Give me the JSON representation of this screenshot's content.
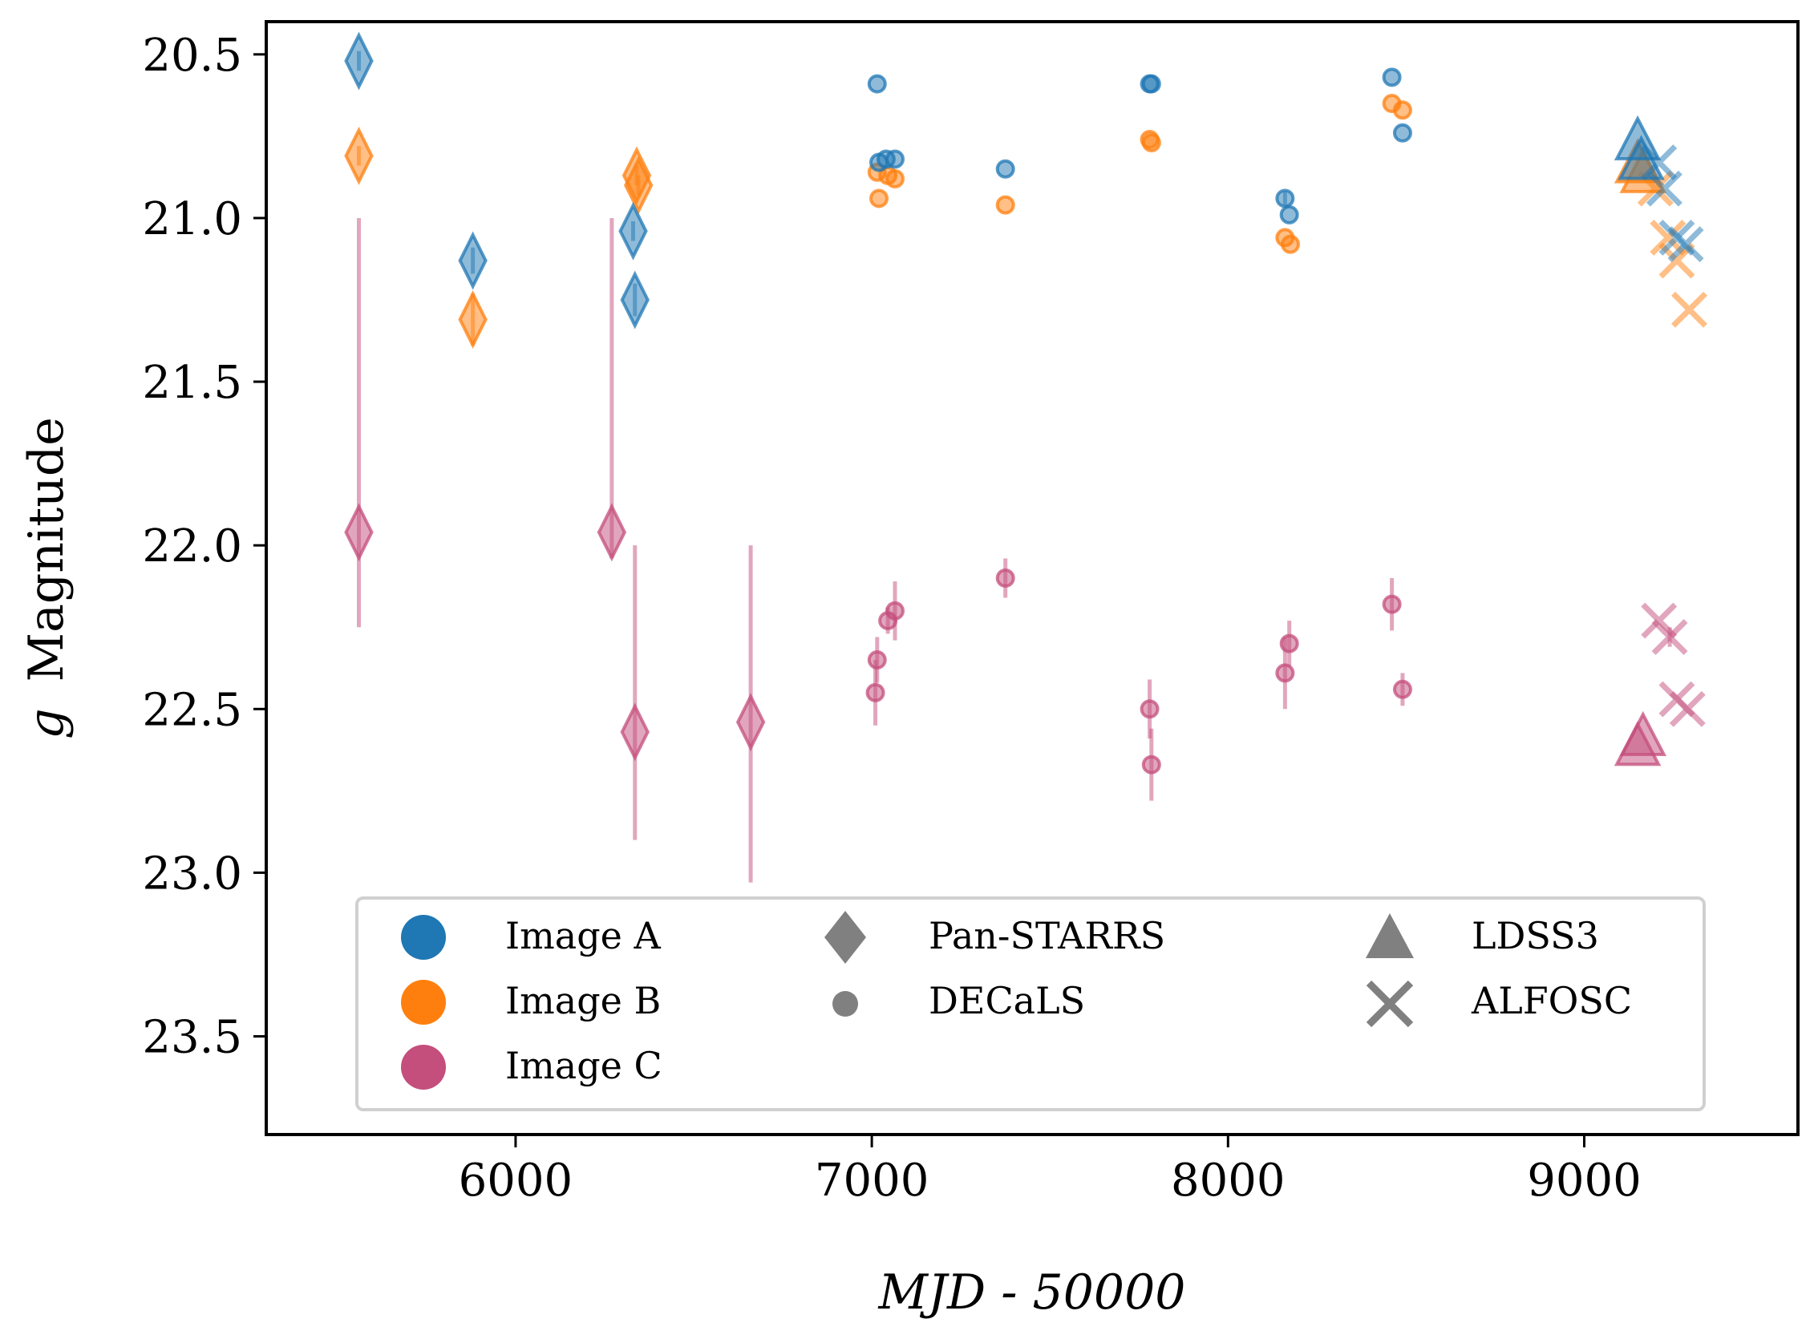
{
  "chart_data": {
    "type": "scatter",
    "title": "",
    "xlabel": "MJD - 50000",
    "ylabel": "g Magnitude",
    "ylabel_italic_part": "g",
    "ylabel_rest": "Magnitude",
    "xlim": [
      5300,
      9600
    ],
    "ylim": [
      23.8,
      20.4
    ],
    "xticks": [
      6000,
      7000,
      8000,
      9000
    ],
    "yticks": [
      20.5,
      21.0,
      21.5,
      22.0,
      22.5,
      23.0,
      23.5
    ],
    "xtick_labels": [
      "6000",
      "7000",
      "8000",
      "9000"
    ],
    "ytick_labels": [
      "20.5",
      "21.0",
      "21.5",
      "22.0",
      "22.5",
      "23.0",
      "23.5"
    ],
    "grid": false,
    "colors": {
      "A": "#1f77b4",
      "B": "#ff7f0e",
      "C": "#c44e7c"
    },
    "images": {
      "A": {
        "label": "Image A",
        "pan_starrs": [
          {
            "x": 5560,
            "y": 20.52,
            "err": 0.03
          },
          {
            "x": 5880,
            "y": 21.13,
            "err": 0.04
          },
          {
            "x": 6330,
            "y": 21.04,
            "err": 0.03
          },
          {
            "x": 6335,
            "y": 21.25,
            "err": 0.05
          }
        ],
        "decals": [
          {
            "x": 7015,
            "y": 20.59,
            "err": 0.0
          },
          {
            "x": 7020,
            "y": 20.83,
            "err": 0.0
          },
          {
            "x": 7040,
            "y": 20.82,
            "err": 0.0
          },
          {
            "x": 7065,
            "y": 20.82,
            "err": 0.0
          },
          {
            "x": 7375,
            "y": 20.85,
            "err": 0.0
          },
          {
            "x": 7780,
            "y": 20.59,
            "err": 0.0
          },
          {
            "x": 7785,
            "y": 20.59,
            "err": 0.0
          },
          {
            "x": 8160,
            "y": 20.94,
            "err": 0.02
          },
          {
            "x": 8172,
            "y": 20.99,
            "err": 0.0
          },
          {
            "x": 8460,
            "y": 20.57,
            "err": 0.0
          },
          {
            "x": 8490,
            "y": 20.74,
            "err": 0.0
          }
        ],
        "ldss3": [
          {
            "x": 9150,
            "y": 20.77,
            "err": 0.0
          },
          {
            "x": 9160,
            "y": 20.83,
            "err": 0.0
          }
        ],
        "alfosc": [
          {
            "x": 9210,
            "y": 20.83,
            "err": 0.0
          },
          {
            "x": 9225,
            "y": 20.91,
            "err": 0.0
          },
          {
            "x": 9260,
            "y": 21.06,
            "err": 0.0
          },
          {
            "x": 9285,
            "y": 21.08,
            "err": 0.0
          }
        ]
      },
      "B": {
        "label": "Image B",
        "pan_starrs": [
          {
            "x": 5560,
            "y": 20.81,
            "err": 0.03
          },
          {
            "x": 5880,
            "y": 21.31,
            "err": 0.08
          },
          {
            "x": 6340,
            "y": 20.87,
            "err": 0.03
          },
          {
            "x": 6345,
            "y": 20.9,
            "err": 0.03
          }
        ],
        "decals": [
          {
            "x": 7015,
            "y": 20.86,
            "err": 0.0
          },
          {
            "x": 7020,
            "y": 20.94,
            "err": 0.0
          },
          {
            "x": 7045,
            "y": 20.87,
            "err": 0.0
          },
          {
            "x": 7065,
            "y": 20.88,
            "err": 0.0
          },
          {
            "x": 7375,
            "y": 20.96,
            "err": 0.0
          },
          {
            "x": 7780,
            "y": 20.76,
            "err": 0.0
          },
          {
            "x": 7785,
            "y": 20.77,
            "err": 0.0
          },
          {
            "x": 8160,
            "y": 21.06,
            "err": 0.0
          },
          {
            "x": 8175,
            "y": 21.08,
            "err": 0.0
          },
          {
            "x": 8460,
            "y": 20.65,
            "err": 0.0
          },
          {
            "x": 8490,
            "y": 20.67,
            "err": 0.0
          }
        ],
        "ldss3": [
          {
            "x": 9150,
            "y": 20.84,
            "err": 0.0
          },
          {
            "x": 9165,
            "y": 20.87,
            "err": 0.0
          }
        ],
        "alfosc": [
          {
            "x": 9200,
            "y": 20.91,
            "err": 0.0
          },
          {
            "x": 9235,
            "y": 21.06,
            "err": 0.0
          },
          {
            "x": 9260,
            "y": 21.13,
            "err": 0.0
          },
          {
            "x": 9295,
            "y": 21.28,
            "err": 0.0
          }
        ]
      },
      "C": {
        "label": "Image C",
        "pan_starrs": [
          {
            "x": 5560,
            "y": 21.96,
            "err_lo": 0.96,
            "err_hi": 0.29
          },
          {
            "x": 6270,
            "y": 21.96,
            "err_lo": 0.96,
            "err_hi": 0.08
          },
          {
            "x": 6335,
            "y": 22.57,
            "err_lo": 0.57,
            "err_hi": 0.33
          },
          {
            "x": 6660,
            "y": 22.54,
            "err_lo": 0.54,
            "err_hi": 0.49
          }
        ],
        "decals": [
          {
            "x": 7015,
            "y": 22.35,
            "err": 0.07
          },
          {
            "x": 7010,
            "y": 22.45,
            "err": 0.1
          },
          {
            "x": 7045,
            "y": 22.23,
            "err": 0.04
          },
          {
            "x": 7065,
            "y": 22.2,
            "err": 0.09
          },
          {
            "x": 7375,
            "y": 22.1,
            "err": 0.06
          },
          {
            "x": 7780,
            "y": 22.5,
            "err": 0.09
          },
          {
            "x": 7785,
            "y": 22.67,
            "err": 0.11
          },
          {
            "x": 8160,
            "y": 22.39,
            "err": 0.11
          },
          {
            "x": 8172,
            "y": 22.3,
            "err": 0.07
          },
          {
            "x": 8460,
            "y": 22.18,
            "err": 0.08
          },
          {
            "x": 8490,
            "y": 22.44,
            "err": 0.05
          }
        ],
        "ldss3": [
          {
            "x": 9150,
            "y": 22.62,
            "err": 0.0
          },
          {
            "x": 9165,
            "y": 22.59,
            "err": 0.0
          }
        ],
        "alfosc": [
          {
            "x": 9210,
            "y": 22.23,
            "err": 0.0
          },
          {
            "x": 9240,
            "y": 22.28,
            "err": 0.03
          },
          {
            "x": 9260,
            "y": 22.47,
            "err": 0.0
          },
          {
            "x": 9290,
            "y": 22.5,
            "err": 0.0
          }
        ]
      }
    },
    "legend": {
      "placement": "lower-center",
      "images": [
        {
          "key": "A",
          "label": "Image A"
        },
        {
          "key": "B",
          "label": "Image B"
        },
        {
          "key": "C",
          "label": "Image C"
        }
      ],
      "instruments": [
        {
          "marker": "diamond",
          "label": "Pan-STARRS"
        },
        {
          "marker": "circle",
          "label": "DECaLS"
        },
        {
          "marker": "triangle",
          "label": "LDSS3"
        },
        {
          "marker": "x",
          "label": "ALFOSC"
        }
      ],
      "marker_color": "#808080"
    }
  }
}
